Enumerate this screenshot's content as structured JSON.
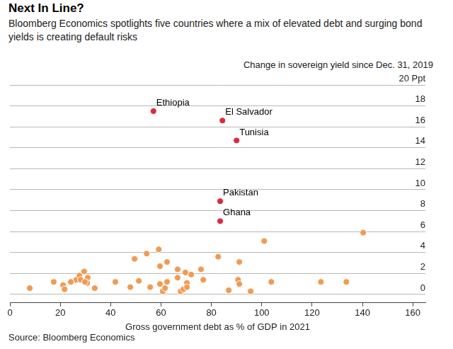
{
  "chart_data": {
    "type": "scatter",
    "title": "Next In Line?",
    "subtitle": "Bloomberg Economics spotlights five countries where a mix of elevated debt and surging bond yields is creating default risks",
    "y_label": "Change in sovereign yield since Dec. 31, 2019",
    "x_label": "Gross government debt as % of GDP in 2021",
    "source": "Source: Bloomberg Economics",
    "xlim": [
      0,
      165
    ],
    "xticks": [
      0,
      20,
      40,
      60,
      80,
      100,
      120,
      140,
      160
    ],
    "ylim": [
      -0.8,
      20
    ],
    "yticks": [
      0,
      2,
      4,
      6,
      8,
      10,
      12,
      14,
      16,
      18,
      {
        "value": 20,
        "label": "20 Ppt"
      }
    ],
    "grid": true,
    "series": [
      {
        "color": "#f29a52",
        "x": [
          7.9,
          17.4,
          21.1,
          21.7,
          24.2,
          26.4,
          27.6,
          28.1,
          29.5,
          30.9,
          30.7,
          29.8,
          33.7,
          41.9,
          47.8,
          51.2,
          54.3,
          49.5,
          59.1,
          55.7,
          59.6,
          59.6,
          62.4,
          62.4,
          60.7,
          61.6,
          66.6,
          66.6,
          67.8,
          68.9,
          69.7,
          70.3,
          70.3,
          72.0,
          75.9,
          76.8,
          82.7,
          86.9,
          91.1,
          90.6,
          91.1,
          95.6,
          103.8,
          123.5,
          133.6,
          101.0,
          140.3
        ],
        "values": [
          0.6,
          1.2,
          0.9,
          0.5,
          1.2,
          1.4,
          1.8,
          1.4,
          2.2,
          1.6,
          1.1,
          1.2,
          0.6,
          1.2,
          0.7,
          1.3,
          3.9,
          3.4,
          4.3,
          0.7,
          2.7,
          1.0,
          3.1,
          1.2,
          0.3,
          0.6,
          2.4,
          1.6,
          0.3,
          0.5,
          2.1,
          1.1,
          0.7,
          1.9,
          2.4,
          1.4,
          3.6,
          0.4,
          3.1,
          1.4,
          1.0,
          0.3,
          1.2,
          1.2,
          1.2,
          5.1,
          5.9
        ]
      },
      {
        "color": "#dd2a3b",
        "x": [
          57.0,
          84.4,
          90.0,
          83.5,
          83.5
        ],
        "values": [
          17.5,
          16.6,
          14.7,
          8.9,
          7.0
        ],
        "labels": [
          "Ethiopia",
          "El Salvador",
          "Tunisia",
          "Pakistan",
          "Ghana"
        ]
      }
    ]
  }
}
